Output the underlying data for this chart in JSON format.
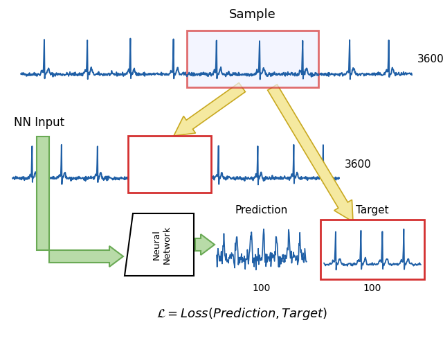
{
  "title_sample": "Sample",
  "label_3600_top": "3600",
  "label_3600_mid": "3600",
  "label_nn_input": "NN Input",
  "label_prediction": "Prediction",
  "label_target": "Target",
  "label_100_pred": "100",
  "label_100_target": "100",
  "label_neural_network": "Neural\nNetwork",
  "loss_text": "$\\mathcal{L} = Loss(Prediction, Target)$",
  "ecg_color": "#1f5fa6",
  "red_box_color": "#d43030",
  "arrow_yellow_fill": "#f5e9a0",
  "arrow_yellow_edge": "#c8a820",
  "arrow_green_fill": "#b8dba8",
  "arrow_green_edge": "#6aaa55",
  "bg_color": "#ffffff"
}
